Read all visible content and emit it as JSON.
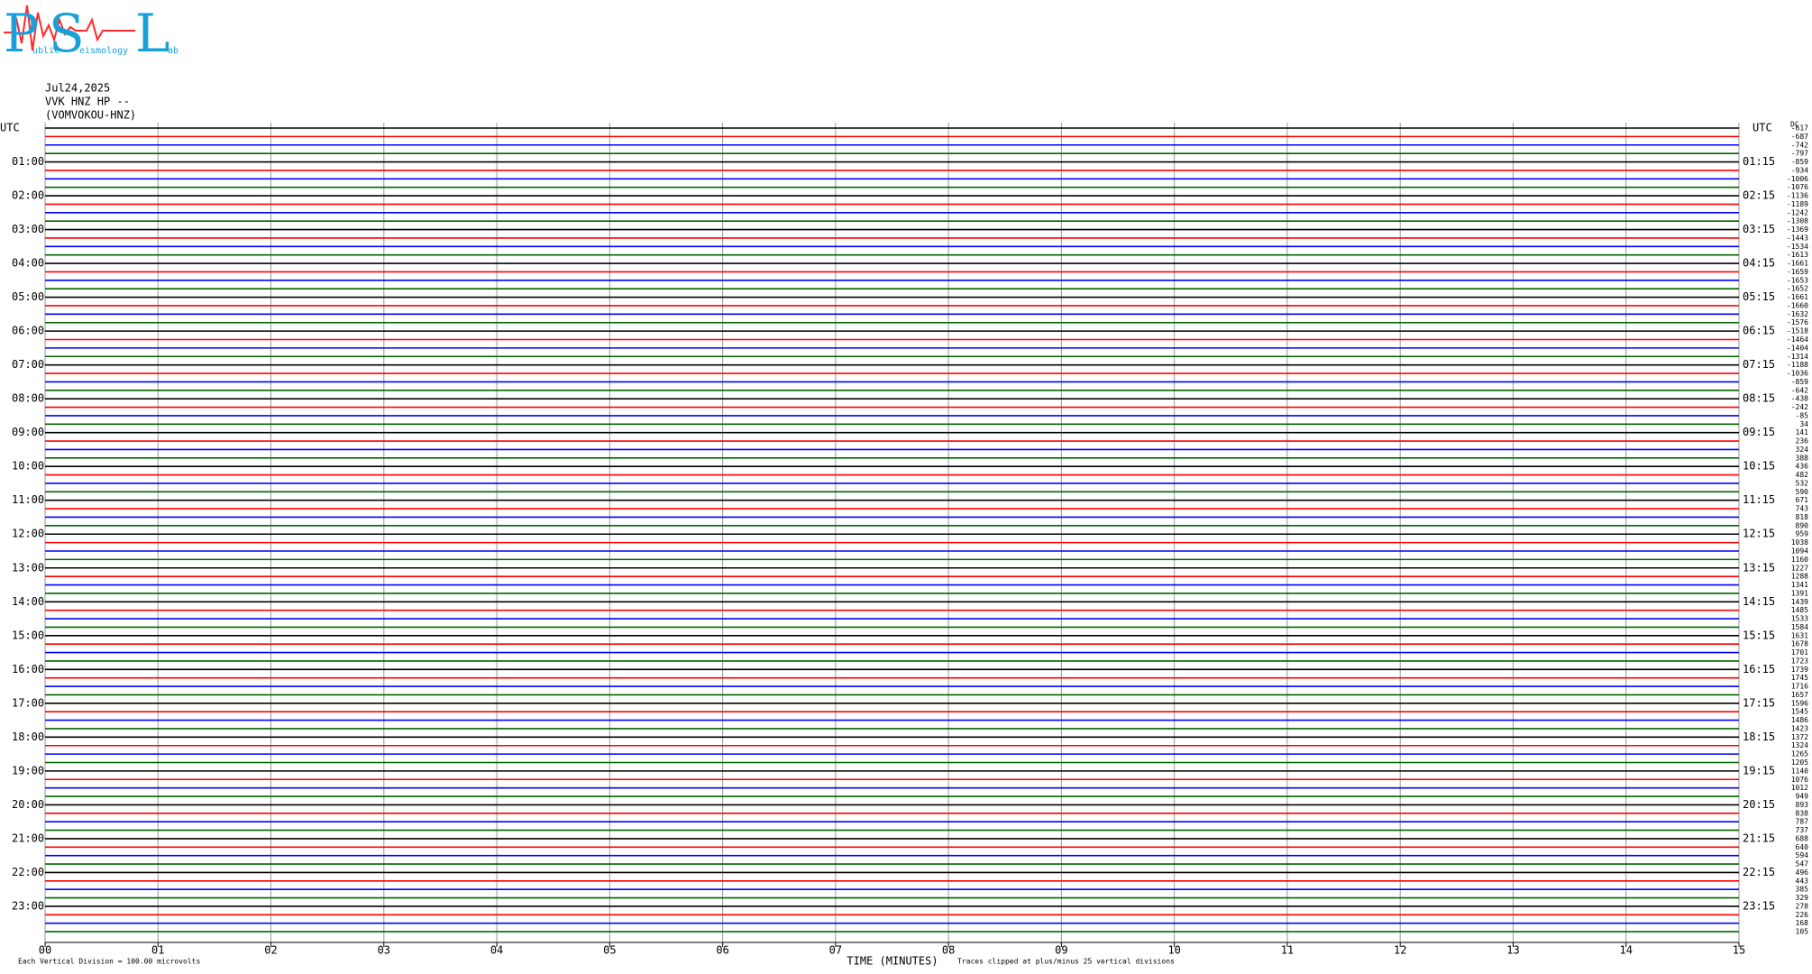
{
  "logo": {
    "letters": [
      "P",
      "S",
      "L"
    ],
    "words": [
      "ublic",
      "eismology",
      "ab"
    ]
  },
  "header": {
    "date": "Jul24,2025",
    "channel": "VVK HNZ HP --",
    "station": "(VOMVOKOU-HNZ)"
  },
  "left_axis": {
    "title": "UTC",
    "labels": [
      "01:00",
      "02:00",
      "03:00",
      "04:00",
      "05:00",
      "06:00",
      "07:00",
      "08:00",
      "09:00",
      "10:00",
      "11:00",
      "12:00",
      "13:00",
      "14:00",
      "15:00",
      "16:00",
      "17:00",
      "18:00",
      "19:00",
      "20:00",
      "21:00",
      "22:00",
      "23:00"
    ]
  },
  "right_axis": {
    "title": "UTC",
    "labels": [
      "01:15",
      "02:15",
      "03:15",
      "04:15",
      "05:15",
      "06:15",
      "07:15",
      "08:15",
      "09:15",
      "10:15",
      "11:15",
      "12:15",
      "13:15",
      "14:15",
      "15:15",
      "16:15",
      "17:15",
      "18:15",
      "19:15",
      "20:15",
      "21:15",
      "22:15",
      "23:15"
    ]
  },
  "offsets": {
    "title": "DC",
    "values": [
      -617,
      -687,
      -742,
      -797,
      -859,
      -934,
      -1006,
      -1076,
      -1136,
      -1189,
      -1242,
      -1308,
      -1369,
      -1443,
      -1534,
      -1613,
      -1661,
      -1659,
      -1653,
      -1652,
      -1661,
      -1660,
      -1632,
      -1576,
      -1518,
      -1464,
      -1404,
      -1314,
      -1188,
      -1036,
      -859,
      -642,
      -438,
      -242,
      -85,
      34,
      141,
      236,
      324,
      388,
      436,
      482,
      532,
      590,
      671,
      743,
      818,
      890,
      959,
      1038,
      1094,
      1160,
      1227,
      1288,
      1341,
      1391,
      1439,
      1485,
      1533,
      1584,
      1631,
      1678,
      1701,
      1723,
      1739,
      1745,
      1716,
      1657,
      1596,
      1545,
      1486,
      1423,
      1372,
      1324,
      1265,
      1205,
      1140,
      1076,
      1012,
      949,
      893,
      838,
      787,
      737,
      688,
      640,
      594,
      547,
      496,
      443,
      385,
      329,
      278,
      226,
      168,
      105
    ]
  },
  "trace_colors": [
    "#000000",
    "#ff0000",
    "#0000ff",
    "#006400"
  ],
  "x_axis": {
    "title": "TIME (MINUTES)",
    "labels": [
      "00",
      "01",
      "02",
      "03",
      "04",
      "05",
      "06",
      "07",
      "08",
      "09",
      "10",
      "11",
      "12",
      "13",
      "14",
      "15"
    ]
  },
  "footer": {
    "scale": "Each Vertical Division =  100.00 microvolts",
    "clip": "Traces clipped at plus/minus 25 vertical divisions"
  }
}
